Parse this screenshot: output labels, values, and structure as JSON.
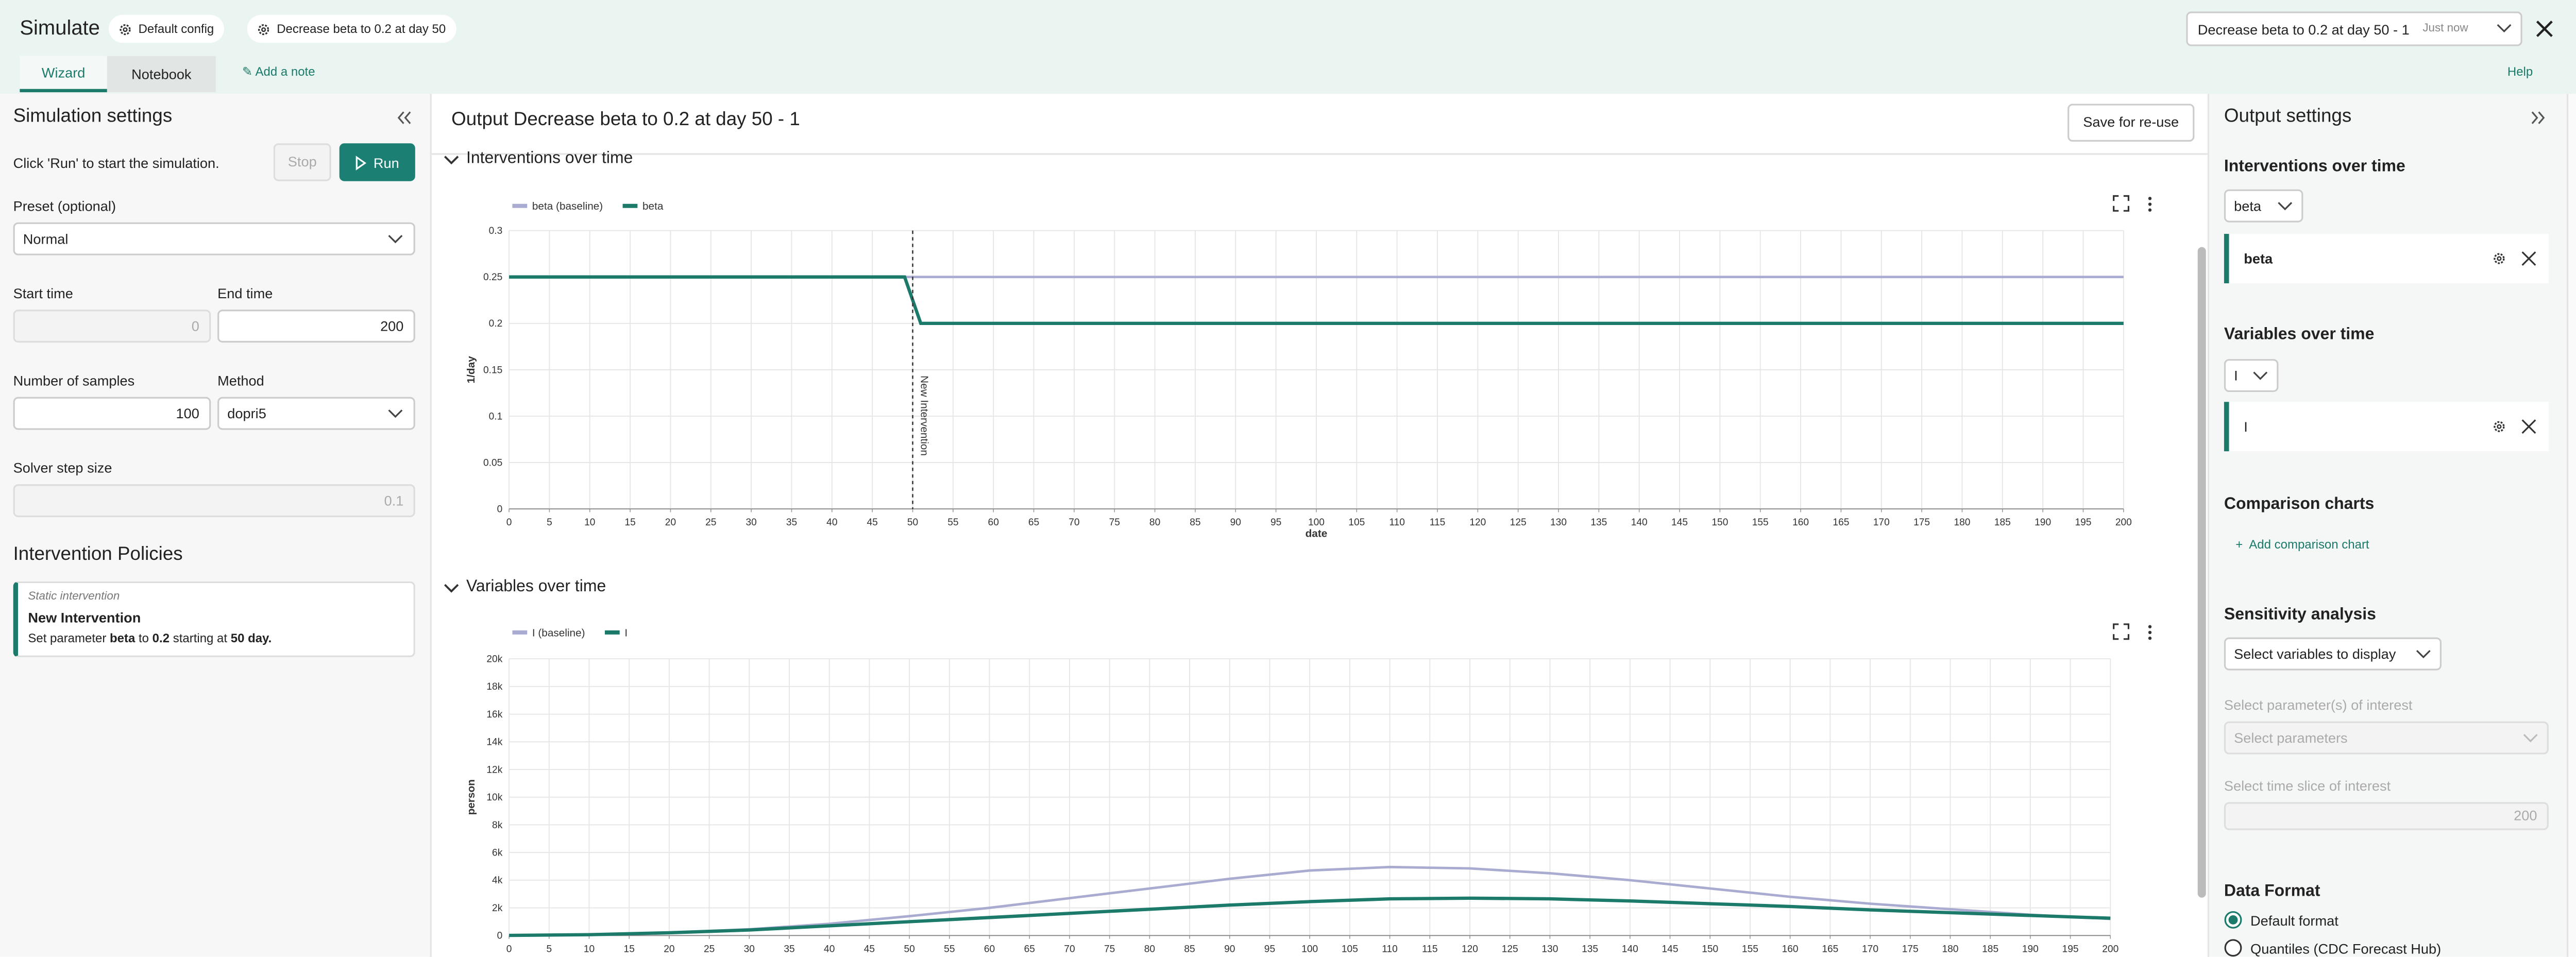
{
  "header": {
    "title": "Simulate",
    "config_button": "Default config",
    "scenario_button": "Decrease beta to 0.2 at day 50",
    "run_select": "Decrease beta to 0.2 at day 50 - 1",
    "run_time": "Just now",
    "tabs": [
      "Wizard",
      "Notebook"
    ],
    "add_note": "Add a note",
    "help": "Help"
  },
  "left_panel": {
    "title": "Simulation settings",
    "hint": "Click 'Run' to start the simulation.",
    "stop": "Stop",
    "run": "Run",
    "preset_label": "Preset (optional)",
    "preset_value": "Normal",
    "start_time_label": "Start time",
    "start_time": "0",
    "end_time_label": "End time",
    "end_time": "200",
    "samples_label": "Number of samples",
    "samples": "100",
    "method_label": "Method",
    "method": "dopri5",
    "step_label": "Solver step size",
    "step": "0.1",
    "policies_title": "Intervention Policies",
    "policy": {
      "kind": "Static intervention",
      "name": "New Intervention",
      "text_parts": [
        "Set parameter ",
        "beta",
        " to ",
        "0.2",
        " starting at ",
        "50 day."
      ]
    }
  },
  "output": {
    "title": "Output Decrease beta to 0.2 at day 50 - 1",
    "save": "Save for re-use",
    "sections": [
      "Interventions over time",
      "Variables over time"
    ]
  },
  "charts": [
    {
      "type": "line",
      "ylabel": "1/day",
      "xlabel": "date",
      "grid": true,
      "x": [
        0,
        49,
        51,
        200
      ],
      "series": [
        {
          "name": "beta (baseline)",
          "color": "#a9abd0",
          "values": [
            0.25,
            0.25,
            0.25,
            0.25
          ]
        },
        {
          "name": "beta",
          "color": "#1b7a6a",
          "values": [
            0.25,
            0.25,
            0.2,
            0.2
          ]
        }
      ],
      "xlim": [
        0,
        200
      ],
      "xticks": [
        0,
        5,
        10,
        15,
        20,
        25,
        30,
        35,
        40,
        45,
        50,
        55,
        60,
        65,
        70,
        75,
        80,
        85,
        90,
        95,
        100,
        105,
        110,
        115,
        120,
        125,
        130,
        135,
        140,
        145,
        150,
        155,
        160,
        165,
        170,
        175,
        180,
        185,
        190,
        195,
        200
      ],
      "ylim": [
        0,
        0.3
      ],
      "yticks": [
        0,
        0.05,
        0.1,
        0.15,
        0.2,
        0.25,
        0.3
      ],
      "annotation": {
        "x": 50,
        "label": "New Intervention"
      }
    },
    {
      "type": "line",
      "ylabel": "person",
      "grid": true,
      "x": [
        0,
        10,
        20,
        30,
        40,
        50,
        60,
        70,
        80,
        90,
        100,
        110,
        120,
        130,
        140,
        150,
        160,
        170,
        180,
        190,
        200
      ],
      "series": [
        {
          "name": "I (baseline)",
          "color": "#a9abd0",
          "values": [
            10,
            60,
            200,
            450,
            850,
            1400,
            2000,
            2700,
            3400,
            4100,
            4700,
            4950,
            4850,
            4500,
            4000,
            3400,
            2800,
            2300,
            1900,
            1500,
            1200
          ]
        },
        {
          "name": "I",
          "color": "#1b7a6a",
          "values": [
            10,
            60,
            200,
            400,
            700,
            1000,
            1300,
            1600,
            1900,
            2200,
            2450,
            2650,
            2700,
            2650,
            2500,
            2300,
            2100,
            1850,
            1650,
            1450,
            1250
          ]
        }
      ],
      "xlim": [
        0,
        200
      ],
      "xticks": [
        0,
        5,
        10,
        15,
        20,
        25,
        30,
        35,
        40,
        45,
        50,
        55,
        60,
        65,
        70,
        75,
        80,
        85,
        90,
        95,
        100,
        105,
        110,
        115,
        120,
        125,
        130,
        135,
        140,
        145,
        150,
        155,
        160,
        165,
        170,
        175,
        180,
        185,
        190,
        195,
        200
      ],
      "ylim": [
        0,
        20000
      ],
      "yticks": [
        0,
        {
          "value": 2000,
          "label": "2k"
        },
        {
          "value": 4000,
          "label": "4k"
        },
        {
          "value": 6000,
          "label": "6k"
        },
        {
          "value": 8000,
          "label": "8k"
        },
        {
          "value": 10000,
          "label": "10k"
        },
        {
          "value": 12000,
          "label": "12k"
        },
        {
          "value": 14000,
          "label": "14k"
        },
        {
          "value": 16000,
          "label": "16k"
        },
        {
          "value": 18000,
          "label": "18k"
        },
        {
          "value": 20000,
          "label": "20k"
        }
      ]
    }
  ],
  "right_panel": {
    "title": "Output settings",
    "interventions_title": "Interventions over time",
    "interventions_select": "beta",
    "interventions_card": "beta",
    "variables_title": "Variables over time",
    "variables_select": "I",
    "variables_card": "I",
    "comparison_title": "Comparison charts",
    "add_comparison": "Add comparison chart",
    "sensitivity_title": "Sensitivity analysis",
    "sensitivity_select": "Select variables to display",
    "parameters_label": "Select parameter(s) of interest",
    "parameters_select": "Select parameters",
    "time_slice_label": "Select time slice of interest",
    "time_slice": "200",
    "format_title": "Data Format",
    "formats": [
      "Default format",
      "Quantiles (CDC Forecast Hub)"
    ]
  }
}
